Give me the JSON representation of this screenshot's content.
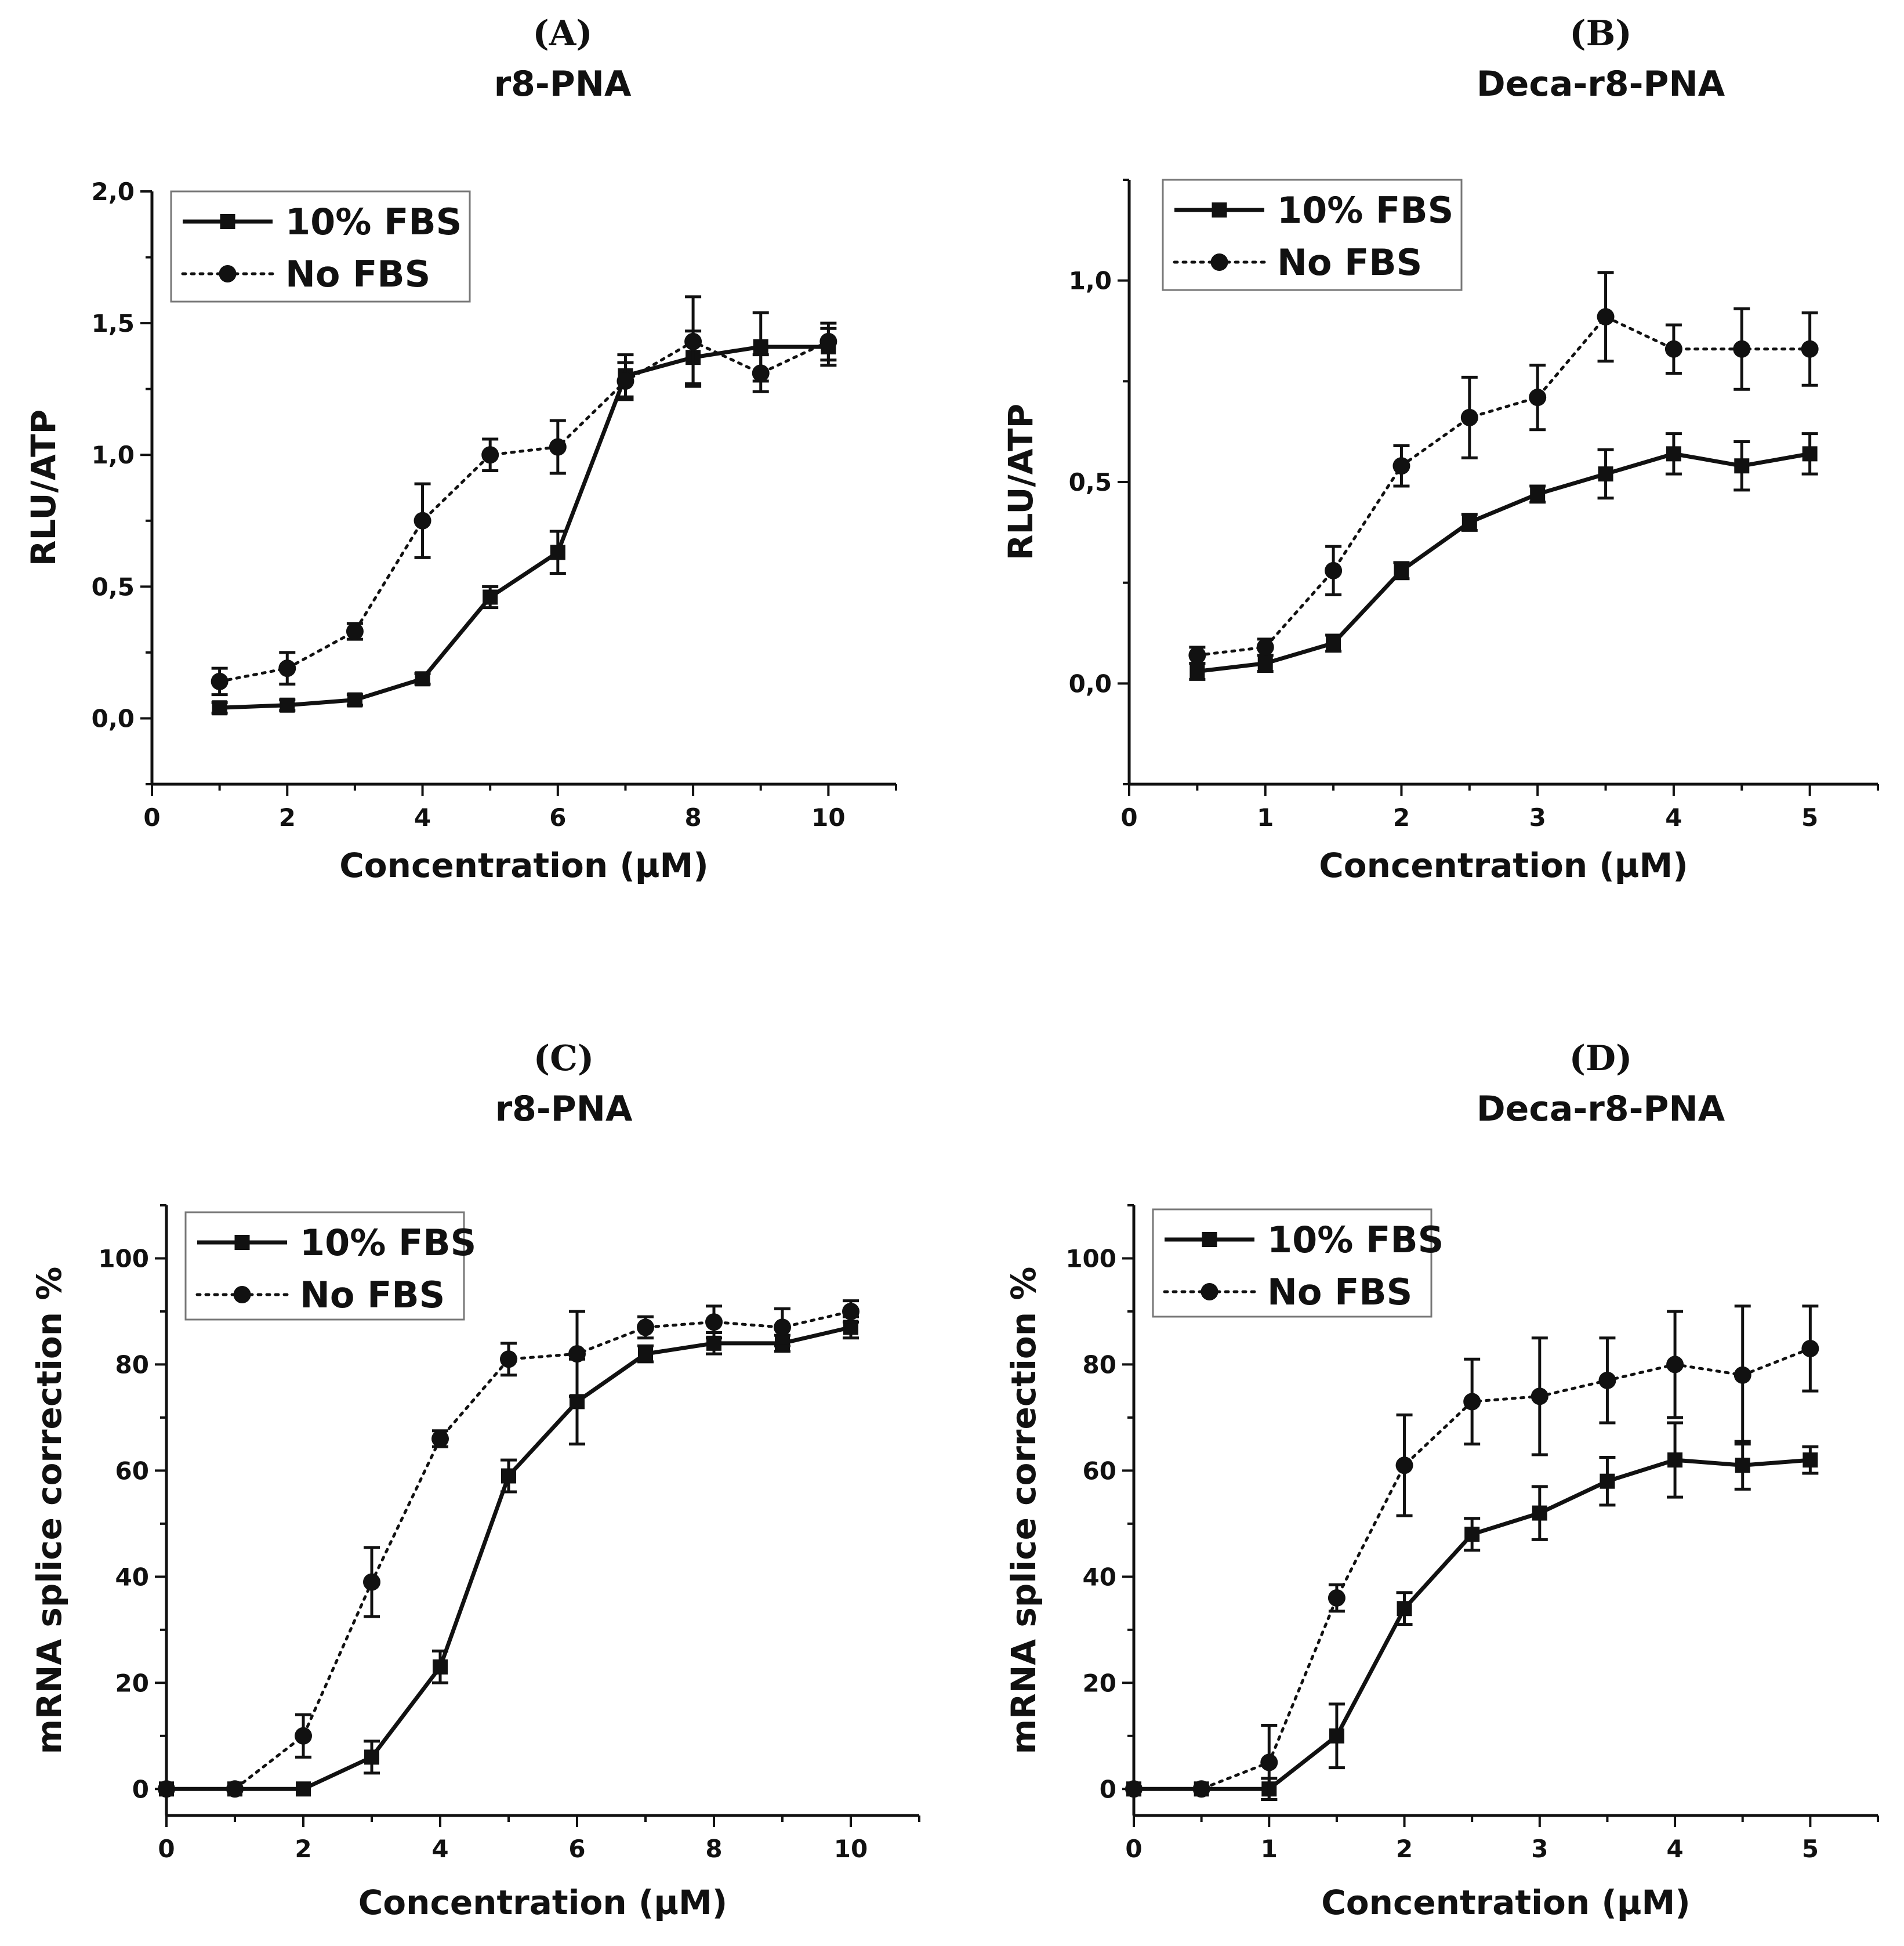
{
  "chart_data": [
    {
      "type": "line",
      "panel_label": "(A)",
      "title": "r8-PNA",
      "xlabel": "Concentration (µM)",
      "ylabel": "RLU/ATP",
      "xlim": [
        0,
        11
      ],
      "ylim": [
        -0.25,
        2.0
      ],
      "x_ticks": [
        0,
        2,
        4,
        6,
        8,
        10
      ],
      "x_tick_labels": [
        "0",
        "2",
        "4",
        "6",
        "8",
        "10"
      ],
      "y_ticks": [
        0,
        0.5,
        1.0,
        1.5,
        2.0
      ],
      "y_tick_labels": [
        "0,0",
        "0,5",
        "1,0",
        "1,5",
        "2,0"
      ],
      "legend_position": "top-left",
      "series": [
        {
          "name": "10% FBS",
          "style": "solid",
          "marker": "square",
          "x": [
            1,
            2,
            3,
            4,
            5,
            6,
            7,
            8,
            9,
            10
          ],
          "y": [
            0.04,
            0.05,
            0.07,
            0.15,
            0.46,
            0.63,
            1.3,
            1.37,
            1.41,
            1.41
          ],
          "err": [
            0.02,
            0.02,
            0.02,
            0.02,
            0.04,
            0.08,
            0.08,
            0.1,
            0.13,
            0.07
          ]
        },
        {
          "name": "No FBS",
          "style": "dotted",
          "marker": "circle",
          "x": [
            1,
            2,
            3,
            4,
            5,
            6,
            7,
            8,
            9,
            10
          ],
          "y": [
            0.14,
            0.19,
            0.33,
            0.75,
            1.0,
            1.03,
            1.28,
            1.43,
            1.31,
            1.43
          ],
          "err": [
            0.05,
            0.06,
            0.03,
            0.14,
            0.06,
            0.1,
            0.07,
            0.17,
            0.07,
            0.07
          ]
        }
      ]
    },
    {
      "type": "line",
      "panel_label": "(B)",
      "title": "Deca-r8-PNA",
      "xlabel": "Concentration (µM)",
      "ylabel": "RLU/ATP",
      "xlim": [
        0,
        5.5
      ],
      "ylim": [
        -0.25,
        1.25
      ],
      "x_ticks": [
        0,
        1,
        2,
        3,
        4,
        5
      ],
      "x_tick_labels": [
        "0",
        "1",
        "2",
        "3",
        "4",
        "5"
      ],
      "y_ticks": [
        0,
        0.5,
        1.0
      ],
      "y_tick_labels": [
        "0,0",
        "0,5",
        "1,0"
      ],
      "legend_position": "top-left",
      "series": [
        {
          "name": "10% FBS",
          "style": "solid",
          "marker": "square",
          "x": [
            0.5,
            1,
            1.5,
            2,
            2.5,
            3,
            3.5,
            4,
            4.5,
            5
          ],
          "y": [
            0.03,
            0.05,
            0.1,
            0.28,
            0.4,
            0.47,
            0.52,
            0.57,
            0.54,
            0.57
          ],
          "err": [
            0.02,
            0.02,
            0.02,
            0.02,
            0.02,
            0.02,
            0.06,
            0.05,
            0.06,
            0.05
          ]
        },
        {
          "name": "No FBS",
          "style": "dotted",
          "marker": "circle",
          "x": [
            0.5,
            1,
            1.5,
            2,
            2.5,
            3,
            3.5,
            4,
            4.5,
            5
          ],
          "y": [
            0.07,
            0.09,
            0.28,
            0.54,
            0.66,
            0.71,
            0.91,
            0.83,
            0.83,
            0.83
          ],
          "err": [
            0.02,
            0.02,
            0.06,
            0.05,
            0.1,
            0.08,
            0.11,
            0.06,
            0.1,
            0.09
          ]
        }
      ]
    },
    {
      "type": "line",
      "panel_label": "(C)",
      "title": "r8-PNA",
      "xlabel": "Concentration (µM)",
      "ylabel": "mRNA splice correction %",
      "xlim": [
        0,
        11
      ],
      "ylim": [
        -5,
        110
      ],
      "x_ticks": [
        0,
        2,
        4,
        6,
        8,
        10
      ],
      "x_tick_labels": [
        "0",
        "2",
        "4",
        "6",
        "8",
        "10"
      ],
      "y_ticks": [
        0,
        20,
        40,
        60,
        80,
        100
      ],
      "y_tick_labels": [
        "0",
        "20",
        "40",
        "60",
        "80",
        "100"
      ],
      "legend_position": "top-left",
      "series": [
        {
          "name": "10% FBS",
          "style": "solid",
          "marker": "square",
          "x": [
            0,
            1,
            2,
            3,
            4,
            5,
            6,
            7,
            8,
            9,
            10
          ],
          "y": [
            0,
            0,
            0,
            6,
            23,
            59,
            73,
            82,
            84,
            84,
            87
          ],
          "err": [
            0,
            0,
            0,
            3,
            3,
            3,
            8,
            1.5,
            2,
            1.5,
            2
          ]
        },
        {
          "name": "No FBS",
          "style": "dotted",
          "marker": "circle",
          "x": [
            0,
            1,
            2,
            3,
            4,
            5,
            6,
            7,
            8,
            9,
            10
          ],
          "y": [
            0,
            0,
            10,
            39,
            66,
            81,
            82,
            87,
            88,
            87,
            90
          ],
          "err": [
            0,
            0,
            4,
            6.5,
            1.5,
            3,
            8,
            2,
            3,
            3.5,
            2
          ]
        }
      ]
    },
    {
      "type": "line",
      "panel_label": "(D)",
      "title": "Deca-r8-PNA",
      "xlabel": "Concentration (µM)",
      "ylabel": "mRNA splice correction %",
      "xlim": [
        0,
        5.5
      ],
      "ylim": [
        -5,
        110
      ],
      "x_ticks": [
        0,
        1,
        2,
        3,
        4,
        5
      ],
      "x_tick_labels": [
        "0",
        "1",
        "2",
        "3",
        "4",
        "5"
      ],
      "y_ticks": [
        0,
        20,
        40,
        60,
        80,
        100
      ],
      "y_tick_labels": [
        "0",
        "20",
        "40",
        "60",
        "80",
        "100"
      ],
      "legend_position": "top-left",
      "series": [
        {
          "name": "10% FBS",
          "style": "solid",
          "marker": "square",
          "x": [
            0,
            0.5,
            1,
            1.5,
            2,
            2.5,
            3,
            3.5,
            4,
            4.5,
            5
          ],
          "y": [
            0,
            0,
            0,
            10,
            34,
            48,
            52,
            58,
            62,
            61,
            62
          ],
          "err": [
            0,
            0,
            2,
            6,
            3,
            3,
            5,
            4.5,
            7,
            4.5,
            2.5
          ]
        },
        {
          "name": "No FBS",
          "style": "dotted",
          "marker": "circle",
          "x": [
            0,
            0.5,
            1,
            1.5,
            2,
            2.5,
            3,
            3.5,
            4,
            4.5,
            5
          ],
          "y": [
            0,
            0,
            5,
            36,
            61,
            73,
            74,
            77,
            80,
            78,
            83
          ],
          "err": [
            0,
            0,
            7,
            2.5,
            9.5,
            8,
            11,
            8,
            10,
            13,
            8
          ]
        }
      ]
    }
  ]
}
